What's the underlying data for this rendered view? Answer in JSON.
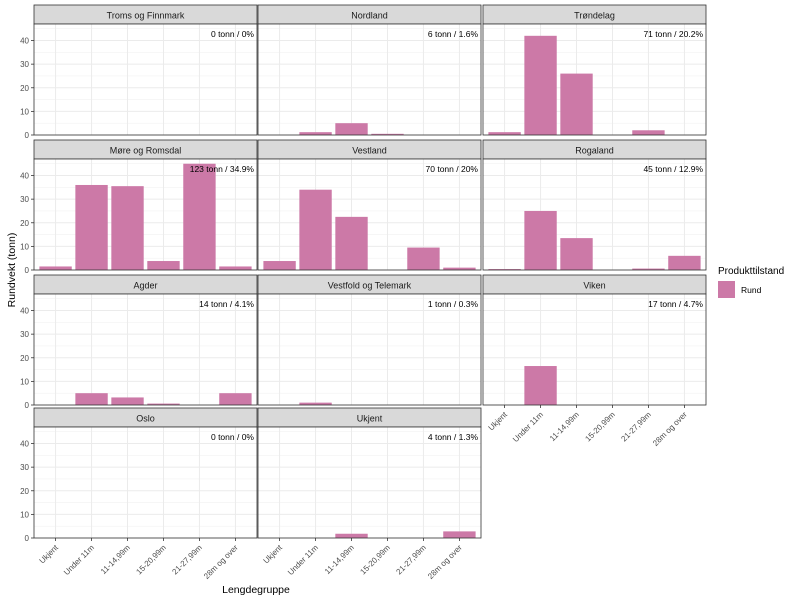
{
  "chart_data": {
    "type": "bar",
    "layout": "faceted",
    "xlabel": "Lengdegruppe",
    "ylabel": "Rundvekt (tonn)",
    "ylim": [
      0,
      47
    ],
    "yticks": [
      0,
      10,
      20,
      30,
      40
    ],
    "categories": [
      "Ukjent",
      "Under 11m",
      "11-14,99m",
      "15-20,99m",
      "21-27,99m",
      "28m og over"
    ],
    "legend": {
      "title": "Produkttilstand",
      "items": [
        {
          "label": "Rund",
          "color": "#cc79a7"
        }
      ]
    },
    "bar_color": "#cc79a7",
    "facets": [
      {
        "title": "Troms og Finnmark",
        "annotation": "0 tonn / 0%",
        "values": [
          0,
          0,
          0,
          0,
          0,
          0
        ]
      },
      {
        "title": "Nordland",
        "annotation": "6 tonn / 1.6%",
        "values": [
          0,
          1.2,
          5,
          0.5,
          0,
          0
        ]
      },
      {
        "title": "Trøndelag",
        "annotation": "71 tonn / 20.2%",
        "values": [
          1.2,
          42,
          26,
          0,
          2,
          0
        ]
      },
      {
        "title": "Møre og Romsdal",
        "annotation": "123 tonn / 34.9%",
        "values": [
          1.5,
          36,
          35.5,
          3.8,
          45,
          1.5
        ]
      },
      {
        "title": "Vestland",
        "annotation": "70 tonn / 20%",
        "values": [
          3.8,
          34,
          22.5,
          0,
          9.5,
          1
        ]
      },
      {
        "title": "Rogaland",
        "annotation": "45 tonn / 12.9%",
        "values": [
          0.4,
          25,
          13.5,
          0,
          0.6,
          6
        ]
      },
      {
        "title": "Agder",
        "annotation": "14 tonn / 4.1%",
        "values": [
          0,
          5,
          3.2,
          0.6,
          0,
          5
        ]
      },
      {
        "title": "Vestfold og Telemark",
        "annotation": "1 tonn / 0.3%",
        "values": [
          0,
          1,
          0,
          0,
          0,
          0
        ]
      },
      {
        "title": "Viken",
        "annotation": "17 tonn / 4.7%",
        "values": [
          0,
          16.5,
          0,
          0,
          0,
          0
        ]
      },
      {
        "title": "Oslo",
        "annotation": "0 tonn / 0%",
        "values": [
          0,
          0,
          0,
          0,
          0,
          0
        ]
      },
      {
        "title": "Ukjent",
        "annotation": "4 tonn / 1.3%",
        "values": [
          0,
          0,
          1.8,
          0,
          0,
          2.8
        ]
      }
    ]
  }
}
